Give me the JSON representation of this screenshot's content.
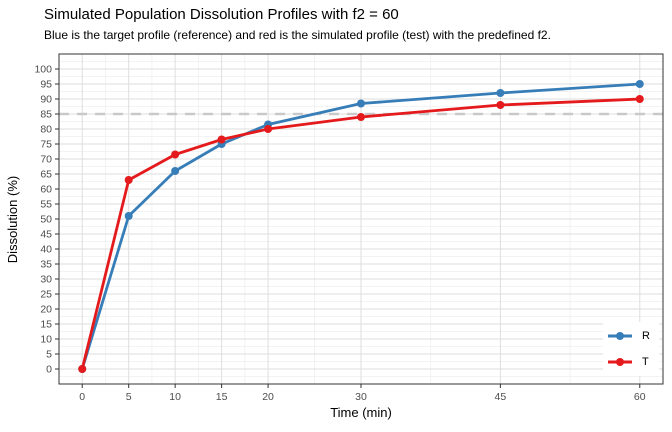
{
  "title": "Simulated Population Dissolution Profiles with f2 = 60",
  "subtitle": "Blue is the target profile (reference) and red is the simulated profile (test) with the predefined f2.",
  "chart_data": {
    "type": "line",
    "title": "Simulated Population Dissolution Profiles with f2 = 60",
    "subtitle": "Blue is the target profile (reference) and red is the simulated profile (test) with the predefined f2.",
    "xlabel": "Time (min)",
    "ylabel": "Dissolution (%)",
    "x": [
      0,
      5,
      10,
      15,
      20,
      30,
      45,
      60
    ],
    "series": [
      {
        "name": "R",
        "color": "#377EB8",
        "values": [
          0,
          51,
          66,
          75,
          81.5,
          88.5,
          92,
          95
        ]
      },
      {
        "name": "T",
        "color": "#E41A1C",
        "values": [
          0,
          63,
          71.5,
          76.5,
          80,
          84,
          88,
          90
        ]
      }
    ],
    "reference_line": {
      "y": 85,
      "style": "dashed",
      "color": "#C9C9C9"
    },
    "x_ticks": [
      0,
      5,
      10,
      15,
      20,
      30,
      45,
      60
    ],
    "y_ticks": [
      0,
      5,
      10,
      15,
      20,
      25,
      30,
      35,
      40,
      45,
      50,
      55,
      60,
      65,
      70,
      75,
      80,
      85,
      90,
      95,
      100
    ],
    "xlim": [
      -2.5,
      62.5
    ],
    "ylim": [
      -5,
      105
    ],
    "grid": true,
    "legend_position": "bottom-right-inside"
  },
  "legend": {
    "items": [
      {
        "label": "R",
        "color": "#377EB8"
      },
      {
        "label": "T",
        "color": "#E41A1C"
      }
    ]
  },
  "colors": {
    "panel_border": "#333333",
    "grid_major": "#DEDEDE",
    "grid_minor": "#EFEFEF",
    "tick_label": "#4D4D4D",
    "reference": "#C9C9C9",
    "background": "#FFFFFF"
  }
}
